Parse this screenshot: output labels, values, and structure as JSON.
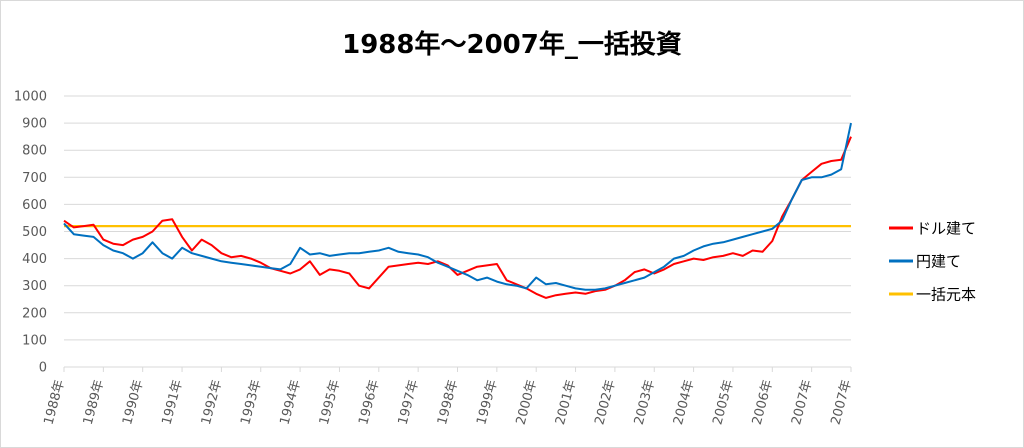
{
  "chart_data": {
    "type": "line",
    "title": "1988年～2007年_一括投資",
    "xlabel": "",
    "ylabel": "",
    "x_ticks": [
      "1988年",
      "1989年",
      "1990年",
      "1991年",
      "1992年",
      "1993年",
      "1994年",
      "1995年",
      "1996年",
      "1997年",
      "1998年",
      "1999年",
      "2000年",
      "2001年",
      "2002年",
      "2003年",
      "2004年",
      "2005年",
      "2006年",
      "2007年",
      "2007年"
    ],
    "y_ticks": [
      0,
      100,
      200,
      300,
      400,
      500,
      600,
      700,
      800,
      900,
      1000
    ],
    "xlim": [
      1988,
      2008
    ],
    "ylim": [
      0,
      1000
    ],
    "grid": "horizontal",
    "legend_position": "right",
    "series": [
      {
        "name": "ドル建て",
        "color": "#ff0000",
        "x": [
          1988.0,
          1988.25,
          1988.5,
          1988.75,
          1989.0,
          1989.25,
          1989.5,
          1989.75,
          1990.0,
          1990.25,
          1990.5,
          1990.75,
          1991.0,
          1991.25,
          1991.5,
          1991.75,
          1992.0,
          1992.25,
          1992.5,
          1992.75,
          1993.0,
          1993.25,
          1993.5,
          1993.75,
          1994.0,
          1994.25,
          1994.5,
          1994.75,
          1995.0,
          1995.25,
          1995.5,
          1995.75,
          1996.0,
          1996.25,
          1996.5,
          1996.75,
          1997.0,
          1997.25,
          1997.5,
          1997.75,
          1998.0,
          1998.25,
          1998.5,
          1998.75,
          1999.0,
          1999.25,
          1999.5,
          1999.75,
          2000.0,
          2000.25,
          2000.5,
          2000.75,
          2001.0,
          2001.25,
          2001.5,
          2001.75,
          2002.0,
          2002.25,
          2002.5,
          2002.75,
          2003.0,
          2003.25,
          2003.5,
          2003.75,
          2004.0,
          2004.25,
          2004.5,
          2004.75,
          2005.0,
          2005.25,
          2005.5,
          2005.75,
          2006.0,
          2006.25,
          2006.5,
          2006.75,
          2007.0,
          2007.25,
          2007.5,
          2007.75,
          2008.0
        ],
        "values": [
          540,
          515,
          520,
          525,
          470,
          455,
          450,
          470,
          480,
          500,
          540,
          545,
          480,
          430,
          470,
          450,
          420,
          405,
          410,
          400,
          385,
          365,
          355,
          345,
          360,
          390,
          340,
          360,
          355,
          345,
          300,
          290,
          330,
          370,
          375,
          380,
          385,
          380,
          390,
          375,
          340,
          355,
          370,
          375,
          380,
          320,
          305,
          290,
          270,
          255,
          265,
          270,
          275,
          270,
          280,
          285,
          300,
          320,
          350,
          360,
          345,
          360,
          380,
          390,
          400,
          395,
          405,
          410,
          420,
          410,
          430,
          425,
          465,
          555,
          620,
          690,
          720,
          750,
          760,
          765,
          850
        ]
      },
      {
        "name": "円建て",
        "color": "#0070c0",
        "x": [
          1988.0,
          1988.25,
          1988.5,
          1988.75,
          1989.0,
          1989.25,
          1989.5,
          1989.75,
          1990.0,
          1990.25,
          1990.5,
          1990.75,
          1991.0,
          1991.25,
          1991.5,
          1991.75,
          1992.0,
          1992.25,
          1992.5,
          1992.75,
          1993.0,
          1993.25,
          1993.5,
          1993.75,
          1994.0,
          1994.25,
          1994.5,
          1994.75,
          1995.0,
          1995.25,
          1995.5,
          1995.75,
          1996.0,
          1996.25,
          1996.5,
          1996.75,
          1997.0,
          1997.25,
          1997.5,
          1997.75,
          1998.0,
          1998.25,
          1998.5,
          1998.75,
          1999.0,
          1999.25,
          1999.5,
          1999.75,
          2000.0,
          2000.25,
          2000.5,
          2000.75,
          2001.0,
          2001.25,
          2001.5,
          2001.75,
          2002.0,
          2002.25,
          2002.5,
          2002.75,
          2003.0,
          2003.25,
          2003.5,
          2003.75,
          2004.0,
          2004.25,
          2004.5,
          2004.75,
          2005.0,
          2005.25,
          2005.5,
          2005.75,
          2006.0,
          2006.25,
          2006.5,
          2006.75,
          2007.0,
          2007.25,
          2007.5,
          2007.75,
          2008.0
        ],
        "values": [
          530,
          490,
          485,
          480,
          450,
          430,
          420,
          400,
          420,
          460,
          420,
          400,
          440,
          420,
          410,
          400,
          390,
          385,
          380,
          375,
          370,
          365,
          360,
          380,
          440,
          415,
          420,
          410,
          415,
          420,
          420,
          425,
          430,
          440,
          425,
          420,
          415,
          405,
          385,
          370,
          355,
          340,
          320,
          330,
          315,
          305,
          300,
          290,
          330,
          305,
          310,
          300,
          290,
          285,
          285,
          290,
          300,
          310,
          320,
          330,
          350,
          370,
          400,
          410,
          430,
          445,
          455,
          460,
          470,
          480,
          490,
          500,
          510,
          540,
          620,
          690,
          700,
          700,
          710,
          730,
          900
        ]
      },
      {
        "name": "一括元本",
        "color": "#ffc000",
        "x": [
          1988.0,
          2008.0
        ],
        "values": [
          520,
          520
        ]
      }
    ]
  }
}
